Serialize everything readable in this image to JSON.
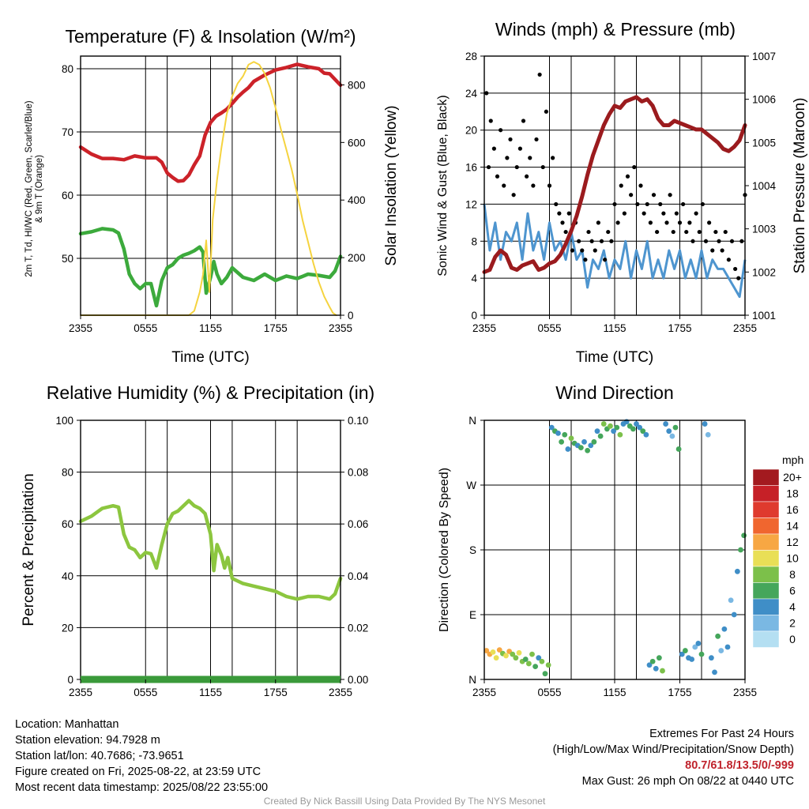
{
  "chart_data": [
    {
      "type": "line",
      "title": "Temperature (F) & Insolation (W/m²)",
      "xlabel": "Time (UTC)",
      "ylabel_left": "2m T, Td, HI/WC (Red, Green, Scarlet/Blue) & 9m T (Orange)",
      "ylabel_right": "Solar Insolation (Yellow)",
      "x_ticks": [
        "2355",
        "0555",
        "1155",
        "1755",
        "2355"
      ],
      "ylim_left": [
        41,
        82
      ],
      "y_ticks_left": [
        50,
        60,
        70,
        80
      ],
      "ylim_right": [
        0,
        900
      ],
      "y_ticks_right": [
        0,
        200,
        400,
        600,
        800
      ],
      "x_hours_since_2355": true,
      "series": [
        {
          "name": "2m T",
          "color": "#cc2229",
          "axis": "left",
          "x": [
            0,
            1,
            2,
            3,
            4,
            5,
            6,
            7,
            7.5,
            8,
            8.5,
            9,
            9.5,
            10,
            10.5,
            11,
            11.5,
            12,
            12.5,
            13,
            13.5,
            14,
            14.5,
            15,
            15.5,
            16,
            17,
            18,
            19,
            20,
            21,
            22,
            22.5,
            23,
            23.5,
            24
          ],
          "y": [
            67.6,
            66.5,
            65.8,
            65.8,
            65.6,
            66.2,
            65.9,
            65.9,
            65.2,
            63.5,
            62.8,
            62.2,
            62.3,
            63.2,
            64.8,
            66.2,
            69.5,
            71.5,
            72.5,
            73.0,
            73.6,
            74.5,
            75.5,
            76.3,
            77.0,
            78.0,
            79.0,
            79.8,
            80.2,
            80.7,
            80.3,
            80.0,
            79.3,
            79.2,
            78.3,
            77.4
          ]
        },
        {
          "name": "Td",
          "color": "#3caa3c",
          "axis": "left",
          "x": [
            0,
            1,
            2,
            3,
            3.5,
            4,
            4.5,
            5,
            5.5,
            6,
            6.5,
            7,
            7.5,
            8,
            8.5,
            9,
            9.5,
            10,
            10.5,
            11,
            11.3,
            11.6,
            12,
            12.3,
            12.6,
            13,
            13.5,
            14,
            15,
            16,
            17,
            18,
            19,
            20,
            21,
            22,
            23,
            23.5,
            24
          ],
          "y": [
            53.9,
            54.2,
            54.7,
            54.5,
            54.0,
            51.5,
            47.5,
            46.0,
            45.2,
            46.0,
            46.0,
            42.5,
            46.5,
            48.5,
            49.0,
            50.0,
            50.5,
            50.8,
            51.2,
            51.8,
            51.0,
            44.5,
            47.0,
            49.5,
            47.5,
            46.0,
            47.0,
            48.5,
            47.0,
            46.5,
            47.5,
            46.5,
            47.2,
            46.8,
            47.5,
            47.3,
            47.0,
            48.0,
            50.3
          ]
        },
        {
          "name": "Solar Insolation",
          "color": "#f5d33f",
          "axis": "right",
          "x": [
            0,
            5,
            10,
            10.5,
            11,
            11.3,
            11.6,
            11.9,
            12.2,
            12.6,
            13,
            13.5,
            14,
            14.5,
            15,
            15.5,
            16,
            16.5,
            17,
            17.5,
            18,
            18.5,
            19,
            19.5,
            20,
            20.5,
            21,
            21.5,
            22,
            22.5,
            23,
            23.3,
            23.6
          ],
          "y": [
            0,
            0,
            0,
            15,
            80,
            140,
            260,
            80,
            330,
            470,
            580,
            700,
            760,
            805,
            830,
            870,
            880,
            870,
            840,
            790,
            720,
            645,
            575,
            505,
            420,
            330,
            255,
            180,
            115,
            65,
            28,
            8,
            0
          ]
        }
      ]
    },
    {
      "type": "scatter",
      "title": "Winds (mph) & Pressure (mb)",
      "xlabel": "Time (UTC)",
      "ylabel_left": "Sonic Wind & Gust (Blue, Black)",
      "ylabel_right": "Station Pressure (Maroon)",
      "x_ticks": [
        "2355",
        "0555",
        "1155",
        "1755",
        "2355"
      ],
      "ylim_left": [
        0,
        28
      ],
      "y_ticks_left": [
        0,
        4,
        8,
        12,
        16,
        20,
        24,
        28
      ],
      "ylim_right": [
        1001,
        1007
      ],
      "y_ticks_right": [
        1001,
        1002,
        1003,
        1004,
        1005,
        1006,
        1007
      ],
      "series": [
        {
          "name": "Pressure",
          "color": "#9b1b1e",
          "axis": "right",
          "x": [
            0,
            0.5,
            1,
            1.5,
            2,
            2.5,
            3,
            3.5,
            4,
            4.5,
            5,
            5.5,
            6,
            6.5,
            7,
            7.5,
            8,
            8.5,
            9,
            9.5,
            10,
            10.5,
            11,
            11.5,
            12,
            12.5,
            13,
            13.5,
            14,
            14.5,
            15,
            15.5,
            16,
            16.5,
            17,
            17.5,
            18,
            18.5,
            19,
            19.5,
            20,
            20.5,
            21,
            21.5,
            22,
            22.5,
            23,
            23.5,
            24
          ],
          "y": [
            1002.0,
            1002.05,
            1002.35,
            1002.5,
            1002.4,
            1002.1,
            1002.05,
            1002.15,
            1002.2,
            1002.25,
            1002.05,
            1002.1,
            1002.2,
            1002.25,
            1002.4,
            1002.65,
            1002.95,
            1003.3,
            1003.75,
            1004.25,
            1004.7,
            1005.05,
            1005.4,
            1005.65,
            1005.85,
            1005.8,
            1005.95,
            1006.0,
            1006.05,
            1005.95,
            1006.0,
            1005.85,
            1005.55,
            1005.4,
            1005.4,
            1005.5,
            1005.45,
            1005.4,
            1005.35,
            1005.3,
            1005.3,
            1005.2,
            1005.1,
            1005.0,
            1004.85,
            1004.8,
            1004.9,
            1005.05,
            1005.4
          ]
        },
        {
          "name": "Sonic Wind",
          "color": "#4e95cf",
          "axis": "left",
          "x": [
            0,
            0.5,
            1,
            1.5,
            2,
            2.5,
            3,
            3.5,
            4,
            4.5,
            5,
            5.5,
            6,
            6.5,
            7,
            7.5,
            8,
            8.5,
            9,
            9.5,
            10,
            10.5,
            11,
            11.5,
            12,
            12.5,
            13,
            13.5,
            14,
            14.5,
            15,
            15.5,
            16,
            16.5,
            17,
            17.5,
            18,
            18.5,
            19,
            19.5,
            20,
            20.5,
            21,
            21.5,
            22,
            22.5,
            23,
            23.5,
            24
          ],
          "y": [
            12,
            7,
            10,
            6,
            9,
            8,
            10,
            6,
            11,
            7,
            9,
            6,
            10,
            7,
            8,
            6,
            9,
            6,
            7,
            3,
            6,
            5,
            7,
            4,
            6,
            5,
            8,
            4,
            7,
            5,
            8,
            4,
            6,
            4,
            7,
            5,
            7,
            4,
            6,
            4,
            7,
            4,
            6,
            5,
            5,
            4,
            3,
            2,
            6
          ]
        },
        {
          "name": "Gust",
          "color": "#000000",
          "axis": "left",
          "x": [
            0.2,
            0.4,
            0.6,
            0.9,
            1.2,
            1.5,
            1.8,
            2.1,
            2.4,
            2.7,
            3.0,
            3.3,
            3.6,
            3.9,
            4.2,
            4.5,
            4.8,
            5.1,
            5.4,
            5.7,
            6.0,
            6.3,
            6.6,
            6.9,
            7.2,
            7.5,
            7.8,
            8.1,
            8.4,
            8.7,
            9.0,
            9.3,
            9.6,
            9.9,
            10.2,
            10.5,
            10.8,
            11.1,
            11.4,
            11.7,
            12.0,
            12.3,
            12.6,
            12.9,
            13.2,
            13.5,
            13.8,
            14.1,
            14.4,
            14.7,
            15.0,
            15.3,
            15.6,
            15.9,
            16.2,
            16.5,
            16.8,
            17.1,
            17.4,
            17.7,
            18.0,
            18.3,
            18.6,
            18.9,
            19.2,
            19.5,
            19.8,
            20.1,
            20.4,
            20.7,
            21.0,
            21.3,
            21.6,
            21.9,
            22.2,
            22.5,
            22.8,
            23.1,
            23.4,
            23.7,
            24.0
          ],
          "y": [
            24,
            16,
            21,
            18,
            15,
            20,
            14,
            17,
            19,
            13,
            16,
            18,
            21,
            15,
            17,
            14,
            19,
            26,
            16,
            22,
            14,
            17,
            12,
            11,
            10,
            9,
            11,
            7,
            10,
            8,
            7,
            6,
            9,
            8,
            7,
            10,
            8,
            6,
            9,
            8,
            12,
            10,
            14,
            11,
            15,
            13,
            16,
            12,
            14,
            11,
            12,
            10,
            13,
            9,
            12,
            11,
            10,
            13,
            9,
            11,
            10,
            12,
            9,
            10,
            8,
            11,
            9,
            12,
            8,
            10,
            7,
            9,
            8,
            7,
            9,
            6,
            8,
            5,
            4,
            8,
            13
          ]
        }
      ]
    },
    {
      "type": "line",
      "title": "Relative Humidity (%) & Precipitation (in)",
      "xlabel": "",
      "ylabel_left": "Percent & Precipitation",
      "x_ticks": [
        "2355",
        "0555",
        "1155",
        "1755",
        "2355"
      ],
      "ylim_left": [
        0,
        100
      ],
      "y_ticks_left": [
        0,
        20,
        40,
        60,
        80,
        100
      ],
      "ylim_right": [
        0,
        0.1
      ],
      "y_ticks_right": [
        "0.00",
        "0.02",
        "0.04",
        "0.06",
        "0.08",
        "0.10"
      ],
      "series": [
        {
          "name": "RH",
          "color": "#8cc63f",
          "axis": "left",
          "x": [
            0,
            1,
            2,
            3,
            3.5,
            4,
            4.5,
            5,
            5.5,
            6,
            6.5,
            7,
            7.5,
            8,
            8.5,
            9,
            9.5,
            10,
            10.5,
            11,
            11.5,
            12,
            12.3,
            12.6,
            13,
            13.3,
            13.6,
            14,
            15,
            16,
            17,
            18,
            19,
            20,
            21,
            22,
            23,
            23.5,
            24
          ],
          "y": [
            61,
            63,
            66,
            67,
            66.5,
            56,
            51,
            50,
            47,
            49,
            48.5,
            43,
            52,
            60,
            64,
            65,
            67,
            69,
            67,
            66,
            64,
            56,
            42,
            52,
            48,
            43,
            47,
            39,
            37,
            36,
            35,
            34,
            32,
            31,
            32,
            32,
            31,
            33,
            39
          ]
        },
        {
          "name": "Precipitation",
          "color": "#3a9a3a",
          "axis": "right",
          "x": [
            0,
            24
          ],
          "y": [
            0,
            0
          ]
        }
      ]
    },
    {
      "type": "scatter",
      "title": "Wind Direction",
      "ylabel_left": "Direction (Colored By Speed)",
      "x_ticks": [
        "2355",
        "0555",
        "1155",
        "1755",
        "2355"
      ],
      "y_ticks_left": [
        "N",
        "E",
        "S",
        "W",
        "N"
      ],
      "ylim_left": [
        0,
        360
      ],
      "legend_title": "mph",
      "legend_labels": [
        "20+",
        "18",
        "16",
        "14",
        "12",
        "10",
        "8",
        "6",
        "4",
        "2",
        "0"
      ],
      "legend_colors": [
        "#a31a1f",
        "#c62027",
        "#df3a2e",
        "#f0662f",
        "#f7a743",
        "#e9df56",
        "#7cc04a",
        "#45a65b",
        "#3f8ec7",
        "#7ab8e3",
        "#b4dff2"
      ],
      "points_hour": [
        0.2,
        0.5,
        0.8,
        1.1,
        1.4,
        1.7,
        2.0,
        2.3,
        2.6,
        2.9,
        3.2,
        3.5,
        3.8,
        4.1,
        4.4,
        4.7,
        5.0,
        5.3,
        5.6,
        5.9,
        6.2,
        6.5,
        6.8,
        7.1,
        7.4,
        7.7,
        8.0,
        8.3,
        8.6,
        8.9,
        9.2,
        9.5,
        9.8,
        10.1,
        10.4,
        10.7,
        11.0,
        11.3,
        11.6,
        11.9,
        12.2,
        12.5,
        12.8,
        13.1,
        13.4,
        13.7,
        14.0,
        14.3,
        14.6,
        14.9,
        15.2,
        15.5,
        15.8,
        16.1,
        16.4,
        16.7,
        17.0,
        17.3,
        17.6,
        17.9,
        18.2,
        18.5,
        18.8,
        19.1,
        19.4,
        19.7,
        20.0,
        20.3,
        20.6,
        20.9,
        21.2,
        21.5,
        21.8,
        22.1,
        22.4,
        22.7,
        23.0,
        23.3,
        23.6,
        23.9
      ],
      "points_dir": [
        40,
        35,
        38,
        30,
        41,
        36,
        33,
        39,
        35,
        30,
        37,
        25,
        28,
        22,
        35,
        18,
        30,
        25,
        8,
        20,
        350,
        345,
        342,
        330,
        340,
        320,
        335,
        328,
        325,
        322,
        330,
        318,
        325,
        330,
        345,
        338,
        355,
        348,
        352,
        345,
        350,
        340,
        355,
        358,
        352,
        348,
        355,
        350,
        345,
        340,
        20,
        25,
        15,
        30,
        12,
        355,
        345,
        338,
        350,
        320,
        35,
        40,
        30,
        28,
        45,
        50,
        35,
        355,
        340,
        30,
        10,
        60,
        40,
        70,
        45,
        110,
        90,
        150,
        180,
        200
      ],
      "points_speed": [
        12,
        11,
        10,
        9,
        12,
        8,
        10,
        11,
        7,
        8,
        9,
        7,
        6,
        8,
        7,
        6,
        4,
        7,
        5,
        8,
        4,
        6,
        4,
        5,
        6,
        4,
        7,
        5,
        4,
        6,
        4,
        5,
        3,
        6,
        4,
        5,
        7,
        6,
        8,
        4,
        5,
        8,
        4,
        3,
        5,
        6,
        3,
        4,
        6,
        4,
        3,
        5,
        4,
        6,
        7,
        4,
        3,
        2,
        5,
        6,
        4,
        5,
        3,
        4,
        2,
        3,
        5,
        3,
        2,
        4,
        3,
        5,
        2,
        3,
        4,
        2,
        3,
        4,
        5,
        6
      ]
    }
  ],
  "info": {
    "location": "Location: Manhattan",
    "elevation": "Station elevation: 94.7928 m",
    "latlon": "Station lat/lon: 40.7686; -73.9651",
    "created": "Figure created on Fri, 2025-08-22, at 23:59 UTC",
    "recent": "Most recent data timestamp: 2025/08/22 23:55:00"
  },
  "extremes": {
    "title": "Extremes For Past 24 Hours",
    "subtitle": "(High/Low/Max Wind/Precipitation/Snow Depth)",
    "values": "80.7/61.8/13.5/0/-999",
    "gust": "Max Gust: 26 mph On 08/22 at 0440 UTC"
  },
  "credit": "Created By Nick Bassill Using Data Provided By The NYS Mesonet",
  "colors": {
    "temp": "#cc2229",
    "dew": "#3caa3c",
    "solar": "#f5d33f",
    "pressure": "#9b1b1e",
    "wind": "#4e95cf",
    "gust": "#000000",
    "rh": "#8cc63f",
    "precip": "#3a9a3a",
    "extremes": "#c0232c"
  }
}
